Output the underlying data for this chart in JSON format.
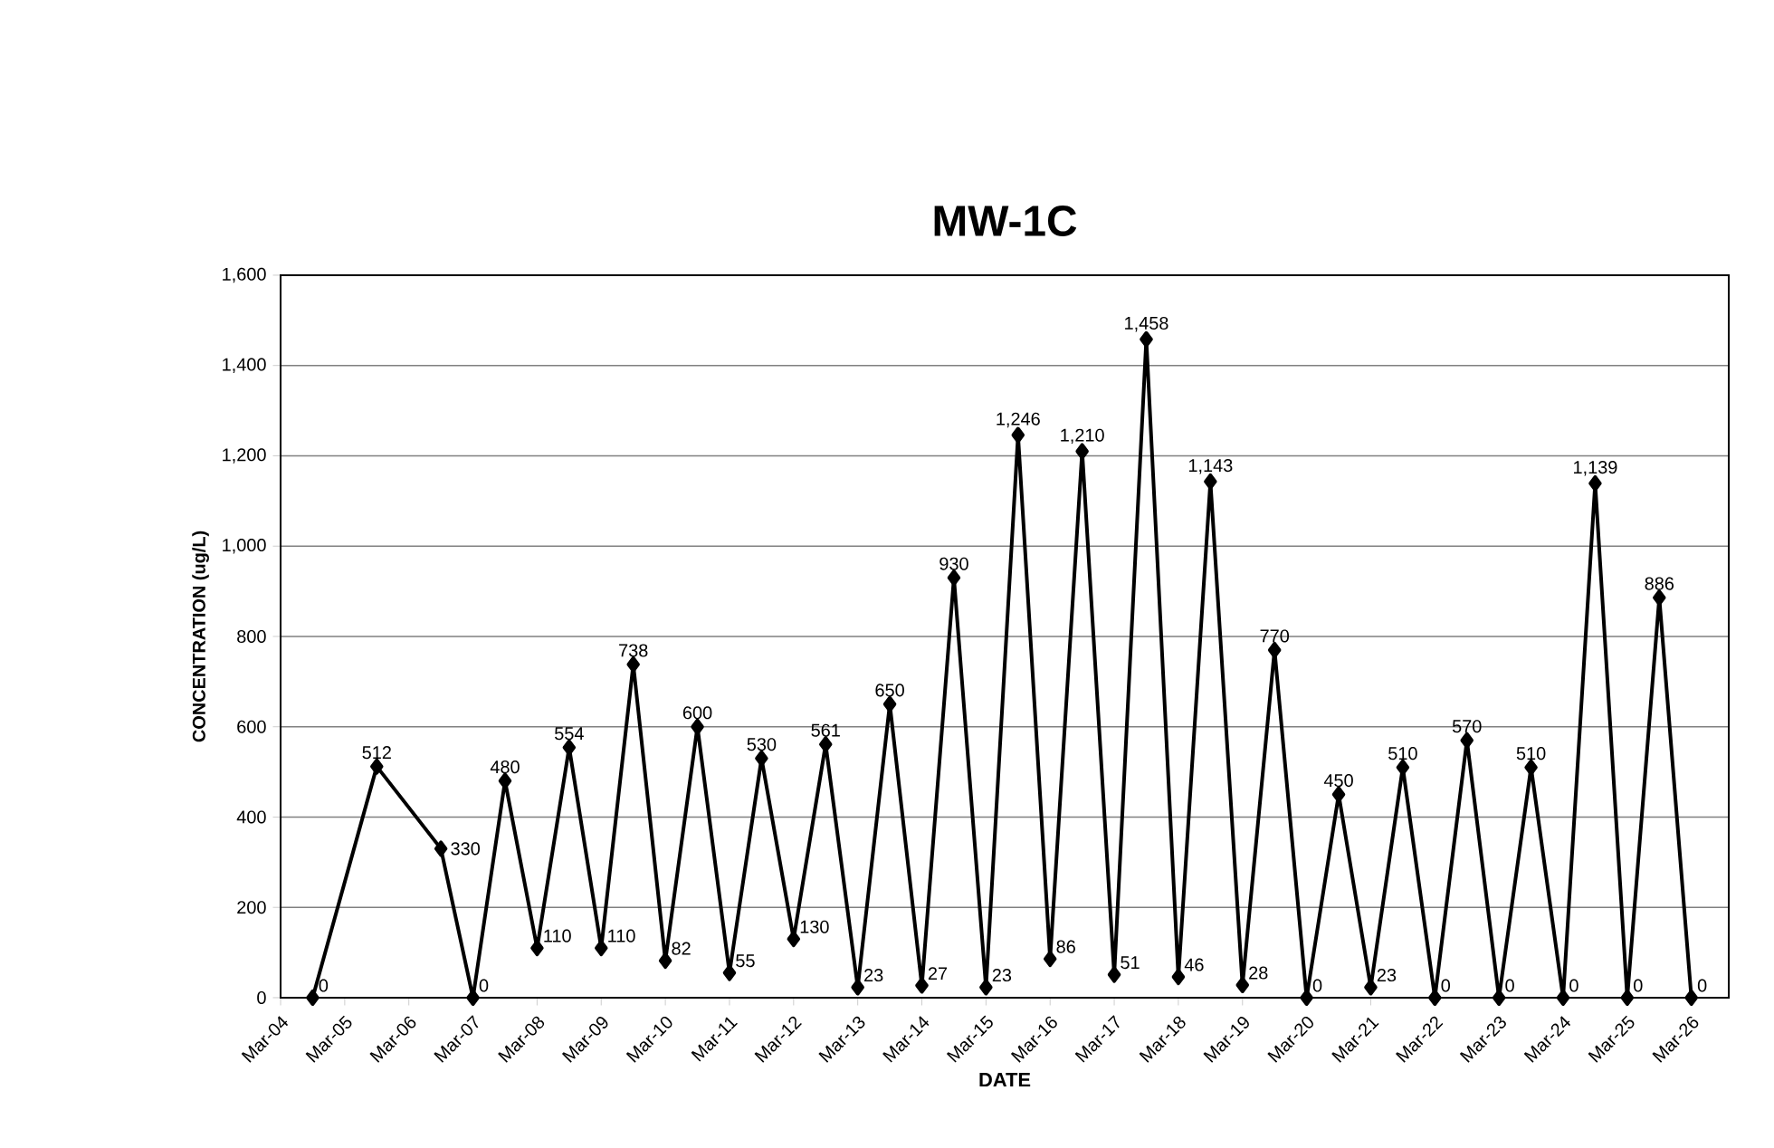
{
  "chart_data": {
    "type": "line",
    "title": "MW-1C",
    "xlabel": "DATE",
    "ylabel": "CONCENTRATION (ug/L)",
    "x": [
      "2004-09",
      "2005-09",
      "2006-09",
      "2007-03",
      "2007-09",
      "2008-03",
      "2008-09",
      "2009-03",
      "2009-09",
      "2010-03",
      "2010-09",
      "2011-03",
      "2011-09",
      "2012-03",
      "2012-09",
      "2013-03",
      "2013-09",
      "2014-03",
      "2014-09",
      "2015-03",
      "2015-09",
      "2016-03",
      "2016-09",
      "2017-03",
      "2017-09",
      "2018-03",
      "2018-09",
      "2019-03",
      "2019-09",
      "2020-03",
      "2020-09",
      "2021-03",
      "2021-09",
      "2022-03",
      "2022-09",
      "2023-03",
      "2023-09",
      "2024-03",
      "2024-09",
      "2025-03",
      "2025-09",
      "2026-03"
    ],
    "series": [
      {
        "color": "#000000",
        "values": [
          0,
          512,
          330,
          0,
          480,
          110,
          554,
          110,
          738,
          82,
          600,
          55,
          530,
          130,
          561,
          23,
          650,
          27,
          930,
          23,
          1246,
          86,
          1210,
          51,
          1458,
          46,
          1143,
          28,
          770,
          0,
          450,
          23,
          510,
          0,
          570,
          0,
          510,
          0,
          1139,
          0,
          886,
          0
        ],
        "value_labels": [
          "0",
          "512",
          "330",
          "0",
          "480",
          "110",
          "554",
          "110",
          "738",
          "82",
          "600",
          "55",
          "530",
          "130",
          "561",
          "23",
          "650",
          "27",
          "930",
          "23",
          "1,246",
          "86",
          "1,210",
          "51",
          "1,458",
          "46",
          "1,143",
          "28",
          "770",
          "0",
          "450",
          "23",
          "510",
          "0",
          "570",
          "0",
          "510",
          "0",
          "1,139",
          "0",
          "886",
          "0"
        ]
      }
    ],
    "xlim": [
      "2004-03",
      "2026-10"
    ],
    "xticks": [
      {
        "value": "2004-03",
        "label": "Mar-04"
      },
      {
        "value": "2005-03",
        "label": "Mar-05"
      },
      {
        "value": "2006-03",
        "label": "Mar-06"
      },
      {
        "value": "2007-03",
        "label": "Mar-07"
      },
      {
        "value": "2008-03",
        "label": "Mar-08"
      },
      {
        "value": "2009-03",
        "label": "Mar-09"
      },
      {
        "value": "2010-03",
        "label": "Mar-10"
      },
      {
        "value": "2011-03",
        "label": "Mar-11"
      },
      {
        "value": "2012-03",
        "label": "Mar-12"
      },
      {
        "value": "2013-03",
        "label": "Mar-13"
      },
      {
        "value": "2014-03",
        "label": "Mar-14"
      },
      {
        "value": "2015-03",
        "label": "Mar-15"
      },
      {
        "value": "2016-03",
        "label": "Mar-16"
      },
      {
        "value": "2017-03",
        "label": "Mar-17"
      },
      {
        "value": "2018-03",
        "label": "Mar-18"
      },
      {
        "value": "2019-03",
        "label": "Mar-19"
      },
      {
        "value": "2020-03",
        "label": "Mar-20"
      },
      {
        "value": "2021-03",
        "label": "Mar-21"
      },
      {
        "value": "2022-03",
        "label": "Mar-22"
      },
      {
        "value": "2023-03",
        "label": "Mar-23"
      },
      {
        "value": "2024-03",
        "label": "Mar-24"
      },
      {
        "value": "2025-03",
        "label": "Mar-25"
      },
      {
        "value": "2026-03",
        "label": "Mar-26"
      }
    ],
    "ylim": [
      0,
      1600
    ],
    "yticks": [
      0,
      {
        "value": 200,
        "label": "200"
      },
      {
        "value": 400,
        "label": "400"
      },
      {
        "value": 600,
        "label": "600"
      },
      {
        "value": 800,
        "label": "800"
      },
      {
        "value": 1000,
        "label": "1,000"
      },
      {
        "value": 1200,
        "label": "1,200"
      },
      {
        "value": 1400,
        "label": "1,400"
      },
      {
        "value": 1600,
        "label": "1,600"
      }
    ],
    "grid": "y",
    "marker": "diamond",
    "line_style": "solid"
  }
}
